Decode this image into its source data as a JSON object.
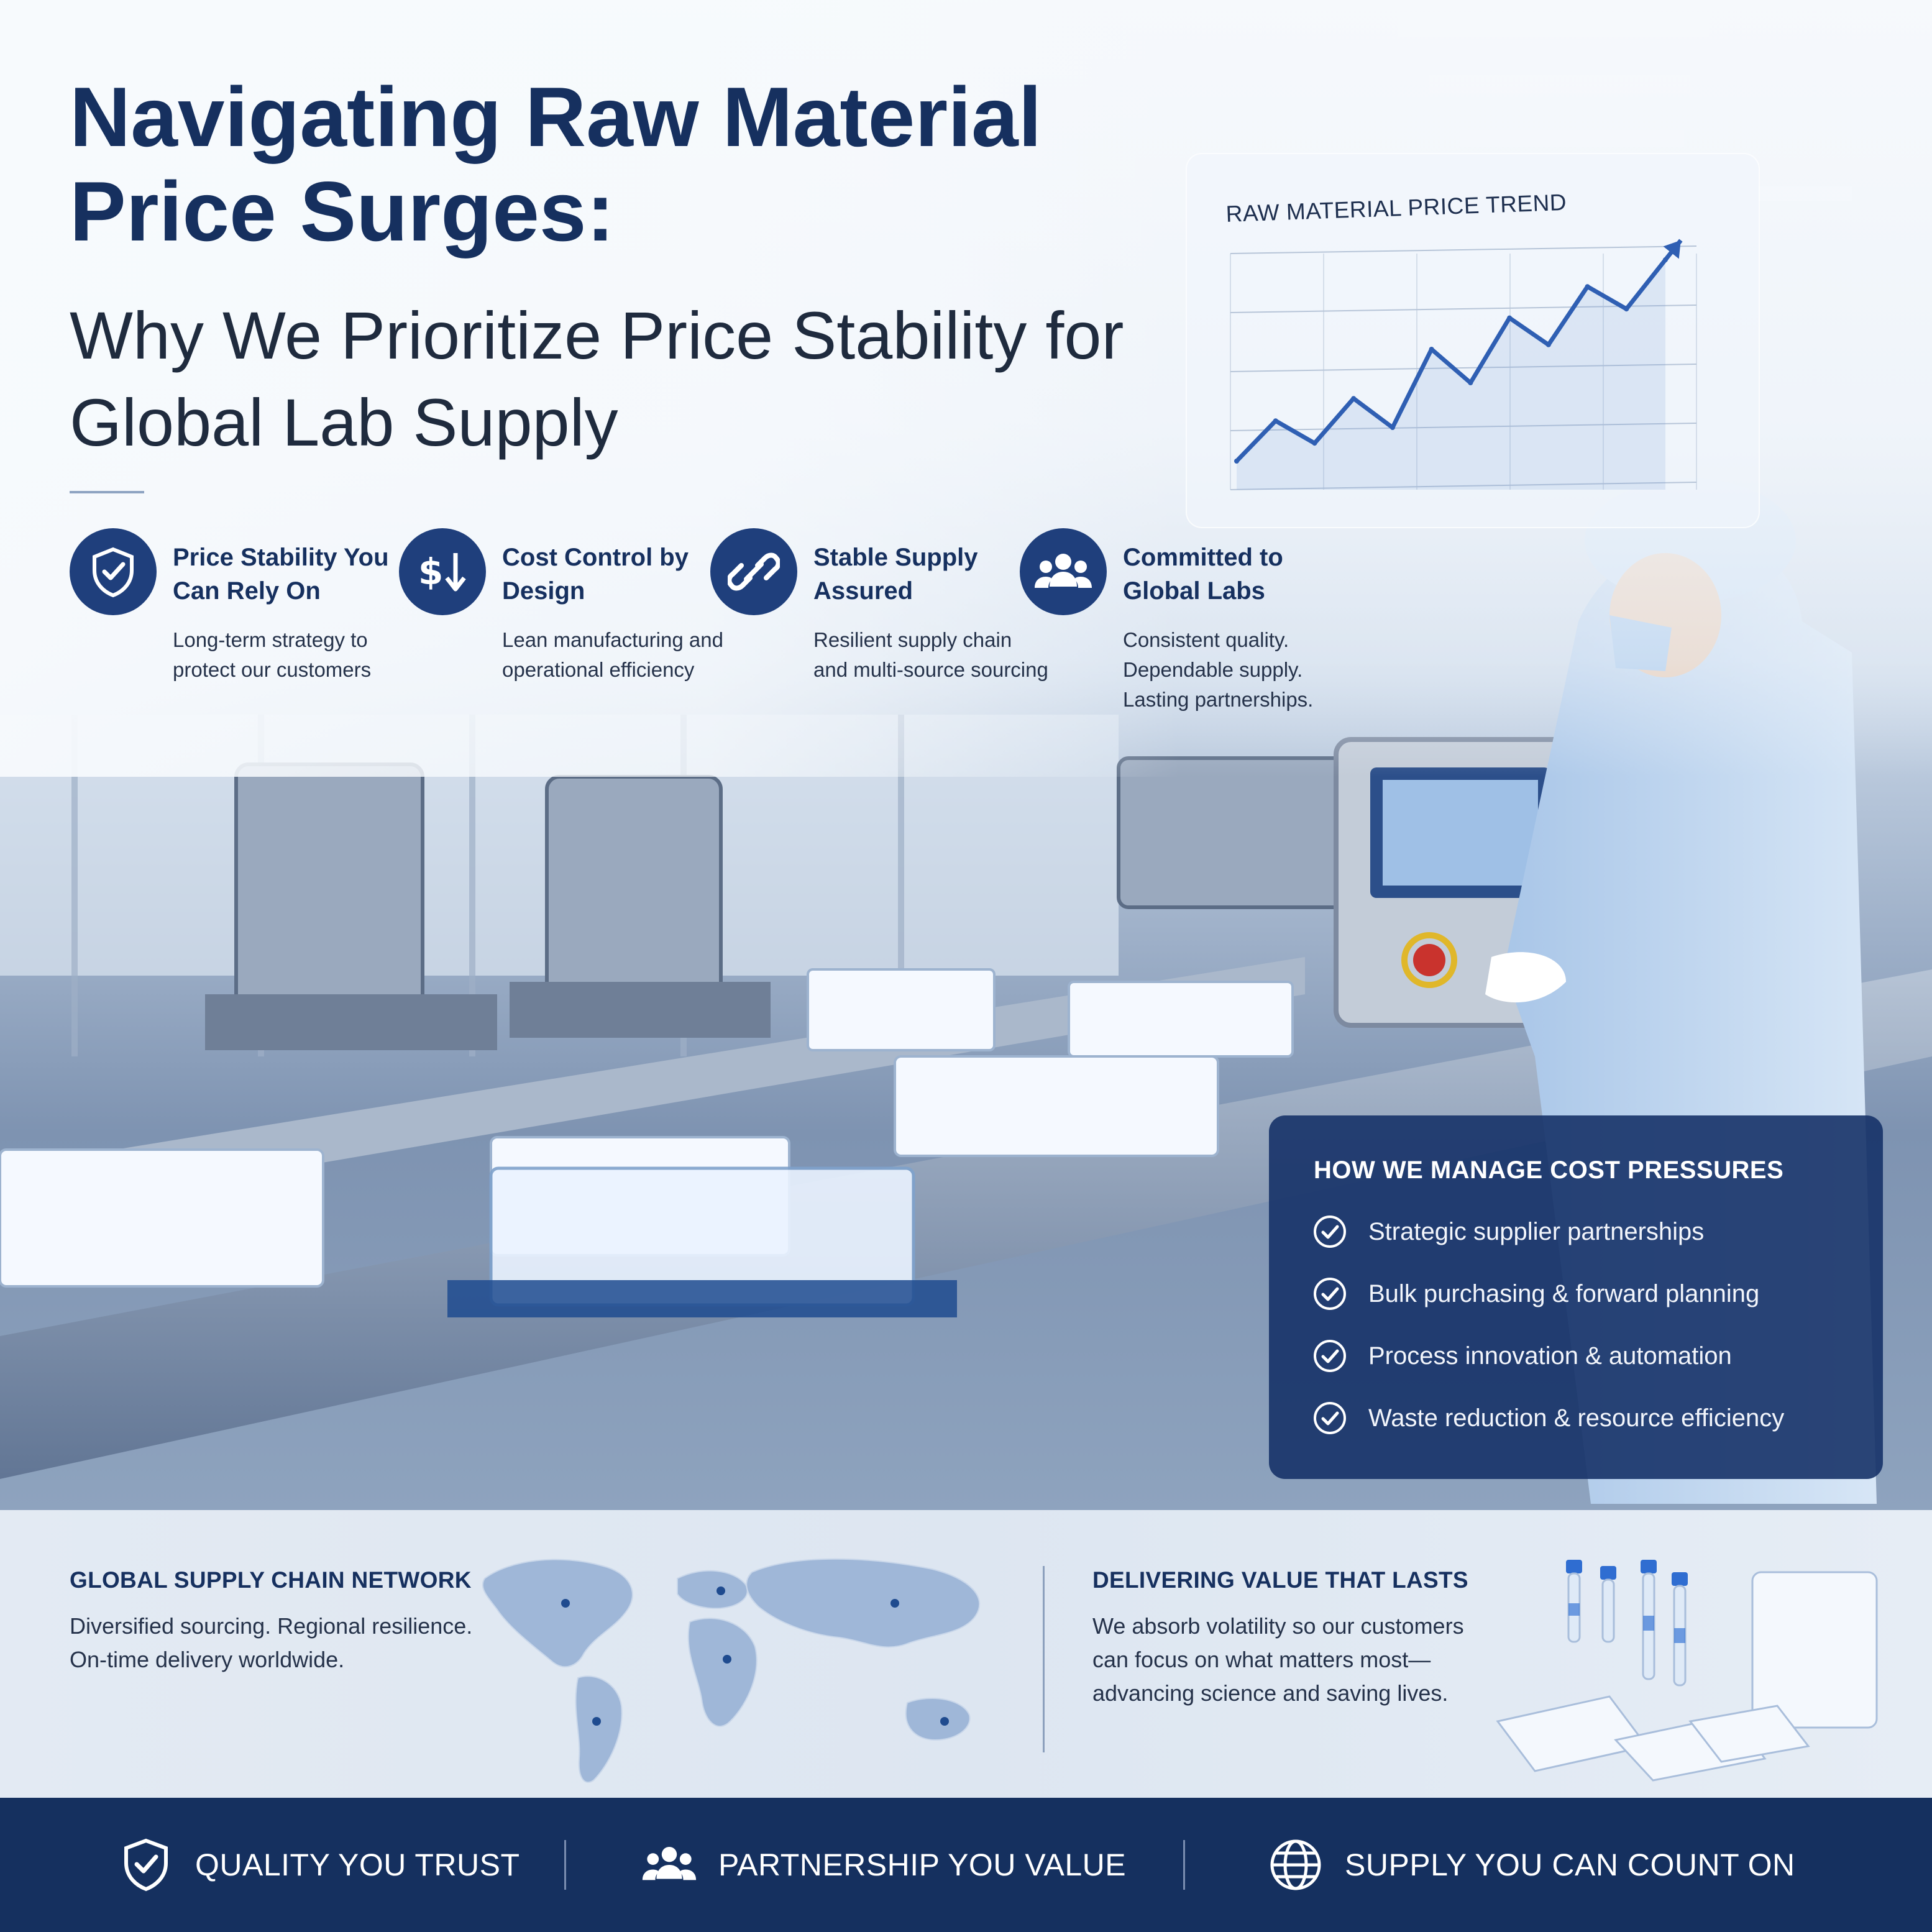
{
  "header": {
    "title": "Navigating Raw Material Price Surges:",
    "subtitle": "Why We Prioritize Price Stability for Global Lab Supply"
  },
  "features": [
    {
      "icon": "shield-check-icon",
      "title": "Price Stability You Can Rely On",
      "description": "Long-term strategy to protect our customers"
    },
    {
      "icon": "dollar-down-icon",
      "title": "Cost Control by Design",
      "description": "Lean manufacturing and operational efficiency"
    },
    {
      "icon": "link-icon",
      "title": "Stable Supply Assured",
      "description": "Resilient supply chain and multi-source sourcing"
    },
    {
      "icon": "people-icon",
      "title": "Committed to Global Labs",
      "description": "Consistent quality. Dependable supply. Lasting partnerships."
    }
  ],
  "trend_chart": {
    "title": "RAW MATERIAL PRICE TREND",
    "chart_data": {
      "type": "line",
      "title": "RAW MATERIAL PRICE TREND",
      "x": [
        1,
        2,
        3,
        4,
        5,
        6,
        7,
        8,
        9,
        10,
        11,
        12
      ],
      "values": [
        10,
        28,
        18,
        38,
        25,
        60,
        45,
        74,
        62,
        88,
        78,
        100
      ],
      "trend": "rising",
      "grid": true
    }
  },
  "cost_pressures": {
    "title": "HOW WE MANAGE COST PRESSURES",
    "items": [
      "Strategic supplier partnerships",
      "Bulk purchasing & forward planning",
      "Process innovation & automation",
      "Waste reduction & resource efficiency"
    ]
  },
  "network": {
    "title": "GLOBAL SUPPLY CHAIN NETWORK",
    "description": "Diversified sourcing. Regional resilience. On-time delivery worldwide.",
    "map_icon": "world-map-icon"
  },
  "value": {
    "title": "DELIVERING VALUE THAT LASTS",
    "description": "We absorb volatility so our customers can focus on what matters most—advancing science and saving lives."
  },
  "footer": [
    {
      "icon": "shield-check-icon",
      "label": "QUALITY YOU TRUST"
    },
    {
      "icon": "people-icon",
      "label": "PARTNERSHIP YOU VALUE"
    },
    {
      "icon": "globe-icon",
      "label": "SUPPLY YOU CAN COUNT ON"
    }
  ],
  "colors": {
    "navy": "#16305f",
    "accent_blue": "#2f5fb3",
    "panel": "#163268",
    "footer_bg": "#15305f"
  }
}
